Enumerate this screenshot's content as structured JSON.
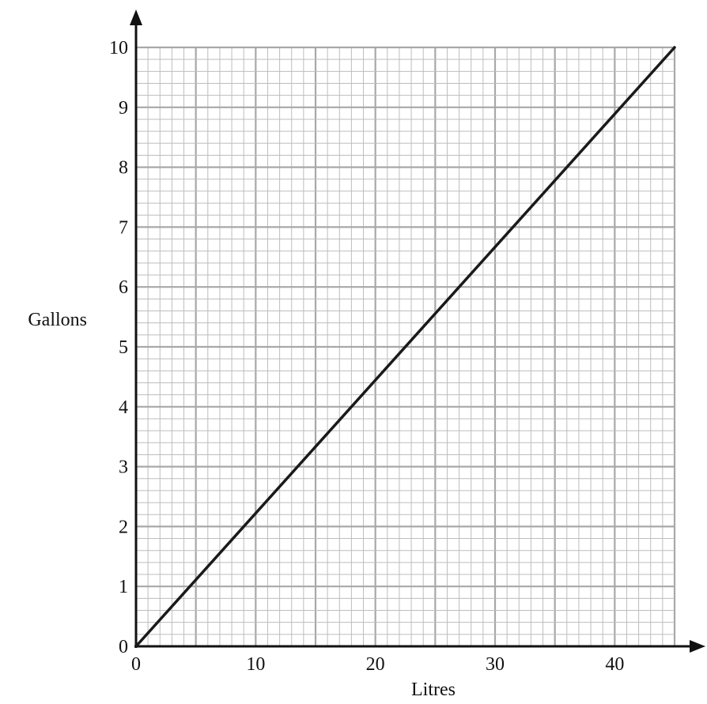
{
  "chart_data": {
    "type": "line",
    "title": "",
    "xlabel": "Litres",
    "ylabel": "Gallons",
    "xlim": [
      0,
      45
    ],
    "ylim": [
      0,
      10
    ],
    "x_ticks": [
      0,
      10,
      20,
      30,
      40
    ],
    "y_ticks": [
      0,
      1,
      2,
      3,
      4,
      5,
      6,
      7,
      8,
      9,
      10
    ],
    "x_minor_step": 1,
    "y_minor_step": 0.2,
    "grid": true,
    "legend": "none",
    "series": [
      {
        "x": [
          0,
          45
        ],
        "y": [
          0,
          10
        ]
      }
    ],
    "colors": {
      "line": "#1a1a1a",
      "grid_minor": "#bdbdbd",
      "grid_major": "#a8a8a8",
      "axis": "#111111"
    }
  }
}
